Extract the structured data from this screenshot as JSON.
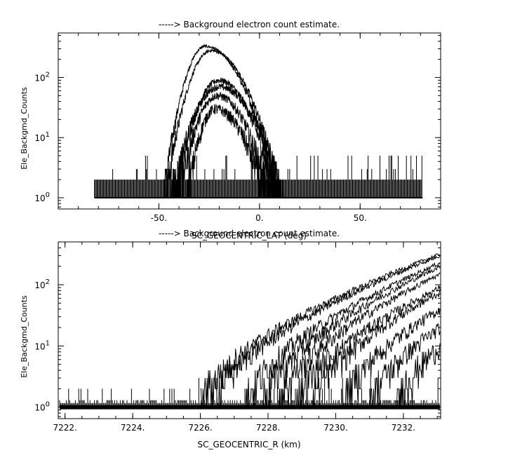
{
  "chart_data": [
    {
      "type": "line",
      "title": "-----> Background electron count estimate.",
      "xlabel": "SC_GEOCENTRIC_LAT (deg)",
      "ylabel": "Ele_Backgmd_Counts",
      "xscale": "linear",
      "yscale": "log",
      "xlim": [
        -100,
        90
      ],
      "ylim": [
        0.65,
        550
      ],
      "x_ticks": [
        -50,
        0,
        50
      ],
      "x_tick_labels": [
        "-50.",
        "0.",
        "50."
      ],
      "y_ticks": [
        1,
        10,
        100
      ],
      "y_tick_labels": [
        "10^0",
        "10^1",
        "10^2"
      ],
      "noise_floor": {
        "x_range": [
          -82,
          81
        ],
        "values": [
          1,
          2,
          3,
          5
        ]
      },
      "series": [
        {
          "peak_x": -27,
          "peak_y": 330,
          "x_range": [
            -48,
            10
          ]
        },
        {
          "peak_x": -24,
          "peak_y": 280,
          "x_range": [
            -47,
            11
          ]
        },
        {
          "peak_x": -20,
          "peak_y": 90,
          "x_range": [
            -42,
            8
          ]
        },
        {
          "peak_x": -20,
          "peak_y": 70,
          "x_range": [
            -44,
            12
          ]
        },
        {
          "peak_x": -21,
          "peak_y": 50,
          "x_range": [
            -40,
            5
          ]
        },
        {
          "peak_x": -22,
          "peak_y": 30,
          "x_range": [
            -36,
            3
          ]
        }
      ],
      "grid": false,
      "legend": "none"
    },
    {
      "type": "line",
      "title": "-----> Background electron count estimate.",
      "xlabel": "SC_GEOCENTRIC_R (km)",
      "ylabel": "Ele_Backgmd_Counts",
      "xscale": "linear",
      "yscale": "log",
      "xlim": [
        7221.8,
        7233.1
      ],
      "ylim": [
        0.65,
        500
      ],
      "x_ticks": [
        7222,
        7224,
        7226,
        7228,
        7230,
        7232
      ],
      "x_tick_labels": [
        "7222.",
        "7224.",
        "7226.",
        "7228.",
        "7230.",
        "7232."
      ],
      "y_ticks": [
        1,
        10,
        100
      ],
      "y_tick_labels": [
        "10^0",
        "10^1",
        "10^2"
      ],
      "noise_floor": {
        "x_range": [
          7221.8,
          7233.1
        ],
        "values": [
          1,
          2,
          3
        ]
      },
      "series": [
        {
          "start_x": 7226.0,
          "end_y": 320
        },
        {
          "start_x": 7226.3,
          "end_y": 300
        },
        {
          "start_x": 7227.3,
          "end_y": 230
        },
        {
          "start_x": 7227.8,
          "end_y": 200
        },
        {
          "start_x": 7228.3,
          "end_y": 150
        },
        {
          "start_x": 7228.8,
          "end_y": 90
        },
        {
          "start_x": 7229.3,
          "end_y": 75
        },
        {
          "start_x": 7230.2,
          "end_y": 40
        },
        {
          "start_x": 7231.0,
          "end_y": 20
        },
        {
          "start_x": 7231.8,
          "end_y": 10
        }
      ],
      "grid": false,
      "legend": "none"
    }
  ]
}
